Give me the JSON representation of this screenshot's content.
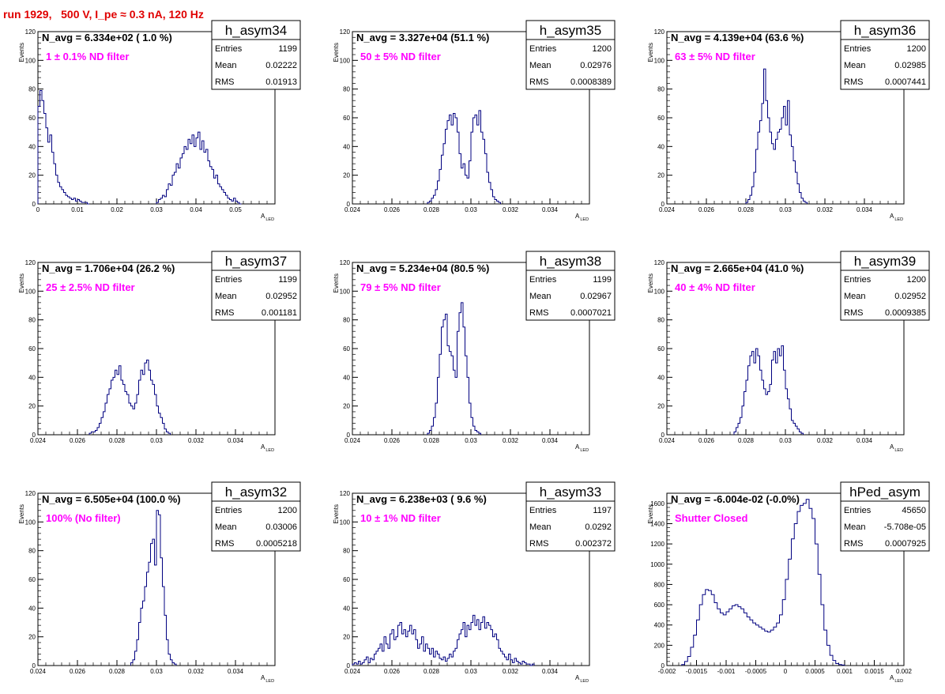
{
  "title": "run 1929,   500 V, I_pe ≈ 0.3 nA, 120 Hz",
  "colors": {
    "title": "#e00000",
    "histogram": "#000080",
    "filter_label": "#ff00ff"
  },
  "stat_labels": {
    "entries": "Entries",
    "mean": "Mean",
    "rms": "RMS"
  },
  "axis_labels": {
    "y": "Events",
    "x_main": "A",
    "x_sub": "LED"
  },
  "chart_data": [
    {
      "type": "bar",
      "name": "h_asym34",
      "n_avg": "N_avg = 6.334e+02 ( 1.0 %)",
      "filter": "1 ± 0.1% ND filter",
      "entries": "1199",
      "mean": "0.02222",
      "rms": "0.01913",
      "xlim": [
        0,
        0.06
      ],
      "ylim": [
        0,
        120
      ],
      "xticks": [
        0,
        0.01,
        0.02,
        0.03,
        0.04,
        0.05
      ],
      "xtick_labels": [
        "0",
        "0.01",
        "0.02",
        "0.03",
        "0.04",
        "0.05"
      ],
      "yticks": [
        0,
        20,
        40,
        60,
        80,
        100,
        120
      ],
      "bins": [
        {
          "x0": 0.0,
          "x1": 0.0005,
          "y": 68
        },
        {
          "x0": 0.0005,
          "x1": 0.001,
          "y": 79
        },
        {
          "x0": 0.001,
          "x1": 0.0015,
          "y": 72
        },
        {
          "x0": 0.0015,
          "x1": 0.002,
          "y": 63
        },
        {
          "x0": 0.002,
          "x1": 0.0025,
          "y": 53
        },
        {
          "x0": 0.0025,
          "x1": 0.003,
          "y": 43
        },
        {
          "x0": 0.003,
          "x1": 0.0035,
          "y": 48
        },
        {
          "x0": 0.0035,
          "x1": 0.004,
          "y": 36
        },
        {
          "x0": 0.004,
          "x1": 0.0045,
          "y": 28
        },
        {
          "x0": 0.0045,
          "x1": 0.005,
          "y": 20
        },
        {
          "x0": 0.005,
          "x1": 0.0055,
          "y": 15
        },
        {
          "x0": 0.0055,
          "x1": 0.006,
          "y": 12
        },
        {
          "x0": 0.006,
          "x1": 0.0065,
          "y": 10
        },
        {
          "x0": 0.0065,
          "x1": 0.007,
          "y": 8
        },
        {
          "x0": 0.007,
          "x1": 0.0075,
          "y": 6
        },
        {
          "x0": 0.0075,
          "x1": 0.008,
          "y": 5
        },
        {
          "x0": 0.008,
          "x1": 0.0085,
          "y": 4
        },
        {
          "x0": 0.0085,
          "x1": 0.009,
          "y": 3
        },
        {
          "x0": 0.009,
          "x1": 0.0095,
          "y": 4
        },
        {
          "x0": 0.0095,
          "x1": 0.01,
          "y": 2
        },
        {
          "x0": 0.01,
          "x1": 0.0105,
          "y": 3
        },
        {
          "x0": 0.0105,
          "x1": 0.011,
          "y": 2
        },
        {
          "x0": 0.011,
          "x1": 0.0115,
          "y": 1
        },
        {
          "x0": 0.0115,
          "x1": 0.012,
          "y": 1
        },
        {
          "x0": 0.012,
          "x1": 0.0125,
          "y": 1
        },
        {
          "x0": 0.0125,
          "x1": 0.013,
          "y": 0
        },
        {
          "x0": 0.03,
          "x1": 0.0305,
          "y": 1
        },
        {
          "x0": 0.0305,
          "x1": 0.031,
          "y": 3
        },
        {
          "x0": 0.031,
          "x1": 0.0315,
          "y": 4
        },
        {
          "x0": 0.0315,
          "x1": 0.032,
          "y": 6
        },
        {
          "x0": 0.032,
          "x1": 0.0325,
          "y": 5
        },
        {
          "x0": 0.0325,
          "x1": 0.033,
          "y": 10
        },
        {
          "x0": 0.033,
          "x1": 0.0335,
          "y": 14
        },
        {
          "x0": 0.0335,
          "x1": 0.034,
          "y": 13
        },
        {
          "x0": 0.034,
          "x1": 0.0345,
          "y": 20
        },
        {
          "x0": 0.0345,
          "x1": 0.035,
          "y": 22
        },
        {
          "x0": 0.035,
          "x1": 0.0355,
          "y": 28
        },
        {
          "x0": 0.0355,
          "x1": 0.036,
          "y": 25
        },
        {
          "x0": 0.036,
          "x1": 0.0365,
          "y": 32
        },
        {
          "x0": 0.0365,
          "x1": 0.037,
          "y": 35
        },
        {
          "x0": 0.037,
          "x1": 0.0375,
          "y": 40
        },
        {
          "x0": 0.0375,
          "x1": 0.038,
          "y": 38
        },
        {
          "x0": 0.038,
          "x1": 0.0385,
          "y": 45
        },
        {
          "x0": 0.0385,
          "x1": 0.039,
          "y": 42
        },
        {
          "x0": 0.039,
          "x1": 0.0395,
          "y": 48
        },
        {
          "x0": 0.0395,
          "x1": 0.04,
          "y": 40
        },
        {
          "x0": 0.04,
          "x1": 0.0405,
          "y": 46
        },
        {
          "x0": 0.0405,
          "x1": 0.041,
          "y": 50
        },
        {
          "x0": 0.041,
          "x1": 0.0415,
          "y": 38
        },
        {
          "x0": 0.0415,
          "x1": 0.042,
          "y": 44
        },
        {
          "x0": 0.042,
          "x1": 0.0425,
          "y": 36
        },
        {
          "x0": 0.0425,
          "x1": 0.043,
          "y": 38
        },
        {
          "x0": 0.043,
          "x1": 0.0435,
          "y": 30
        },
        {
          "x0": 0.0435,
          "x1": 0.044,
          "y": 26
        },
        {
          "x0": 0.044,
          "x1": 0.0445,
          "y": 24
        },
        {
          "x0": 0.0445,
          "x1": 0.045,
          "y": 18
        },
        {
          "x0": 0.045,
          "x1": 0.0455,
          "y": 20
        },
        {
          "x0": 0.0455,
          "x1": 0.046,
          "y": 14
        },
        {
          "x0": 0.046,
          "x1": 0.0465,
          "y": 12
        },
        {
          "x0": 0.0465,
          "x1": 0.047,
          "y": 10
        },
        {
          "x0": 0.047,
          "x1": 0.0475,
          "y": 8
        },
        {
          "x0": 0.0475,
          "x1": 0.048,
          "y": 6
        },
        {
          "x0": 0.048,
          "x1": 0.0485,
          "y": 4
        },
        {
          "x0": 0.0485,
          "x1": 0.049,
          "y": 3
        },
        {
          "x0": 0.049,
          "x1": 0.0495,
          "y": 2
        },
        {
          "x0": 0.0495,
          "x1": 0.05,
          "y": 4
        },
        {
          "x0": 0.05,
          "x1": 0.0505,
          "y": 2
        },
        {
          "x0": 0.0505,
          "x1": 0.051,
          "y": 1
        },
        {
          "x0": 0.051,
          "x1": 0.0515,
          "y": 0
        }
      ]
    },
    {
      "type": "bar",
      "name": "h_asym35",
      "n_avg": "N_avg = 3.327e+04 (51.1 %)",
      "filter": "50 ± 5% ND filter",
      "entries": "1200",
      "mean": "0.02976",
      "rms": "0.0008389",
      "xlim": [
        0.024,
        0.036
      ],
      "ylim": [
        0,
        120
      ],
      "xticks": [
        0.024,
        0.026,
        0.028,
        0.03,
        0.032,
        0.034
      ],
      "xtick_labels": [
        "0.024",
        "0.026",
        "0.028",
        "0.03",
        "0.032",
        "0.034"
      ],
      "yticks": [
        0,
        20,
        40,
        60,
        80,
        100,
        120
      ],
      "x0": 0.0278,
      "dx": 0.0001,
      "counts": [
        1,
        2,
        4,
        6,
        10,
        16,
        24,
        34,
        42,
        52,
        58,
        62,
        55,
        63,
        60,
        50,
        35,
        25,
        28,
        20,
        18,
        30,
        50,
        60,
        62,
        55,
        65,
        50,
        45,
        35,
        22,
        15,
        10,
        5,
        3,
        2,
        1
      ]
    },
    {
      "type": "bar",
      "name": "h_asym36",
      "n_avg": "N_avg = 4.139e+04 (63.6 %)",
      "filter": "63 ± 5% ND filter",
      "entries": "1200",
      "mean": "0.02985",
      "rms": "0.0007441",
      "xlim": [
        0.024,
        0.036
      ],
      "ylim": [
        0,
        120
      ],
      "xticks": [
        0.024,
        0.026,
        0.028,
        0.03,
        0.032,
        0.034
      ],
      "xtick_labels": [
        "0.024",
        "0.026",
        "0.028",
        "0.03",
        "0.032",
        "0.034"
      ],
      "yticks": [
        0,
        20,
        40,
        60,
        80,
        100,
        120
      ],
      "x0": 0.028,
      "dx": 0.0001,
      "counts": [
        1,
        3,
        6,
        12,
        22,
        38,
        50,
        58,
        70,
        94,
        72,
        60,
        50,
        42,
        38,
        45,
        50,
        52,
        60,
        68,
        55,
        72,
        48,
        40,
        30,
        22,
        14,
        8,
        4,
        2,
        1
      ]
    },
    {
      "type": "bar",
      "name": "h_asym37",
      "n_avg": "N_avg = 1.706e+04 (26.2 %)",
      "filter": "25 ± 2.5% ND filter",
      "entries": "1199",
      "mean": "0.02952",
      "rms": "0.001181",
      "xlim": [
        0.024,
        0.036
      ],
      "ylim": [
        0,
        120
      ],
      "xticks": [
        0.024,
        0.026,
        0.028,
        0.03,
        0.032,
        0.034
      ],
      "xtick_labels": [
        "0.024",
        "0.026",
        "0.028",
        "0.03",
        "0.032",
        "0.034"
      ],
      "yticks": [
        0,
        20,
        40,
        60,
        80,
        100,
        120
      ],
      "x0": 0.0266,
      "dx": 0.0001,
      "counts": [
        1,
        2,
        2,
        3,
        5,
        8,
        12,
        16,
        22,
        28,
        32,
        38,
        40,
        45,
        42,
        48,
        38,
        35,
        30,
        28,
        22,
        20,
        18,
        22,
        28,
        38,
        45,
        42,
        50,
        52,
        45,
        38,
        35,
        28,
        20,
        15,
        12,
        8,
        4,
        2,
        1
      ]
    },
    {
      "type": "bar",
      "name": "h_asym38",
      "n_avg": "N_avg = 5.234e+04 (80.5 %)",
      "filter": "79 ± 5% ND filter",
      "entries": "1199",
      "mean": "0.02967",
      "rms": "0.0007021",
      "xlim": [
        0.024,
        0.036
      ],
      "ylim": [
        0,
        120
      ],
      "xticks": [
        0.024,
        0.026,
        0.028,
        0.03,
        0.032,
        0.034
      ],
      "xtick_labels": [
        "0.024",
        "0.026",
        "0.028",
        "0.03",
        "0.032",
        "0.034"
      ],
      "yticks": [
        0,
        20,
        40,
        60,
        80,
        100,
        120
      ],
      "x0": 0.0278,
      "dx": 0.0001,
      "counts": [
        1,
        3,
        6,
        12,
        22,
        40,
        56,
        75,
        80,
        84,
        62,
        58,
        55,
        45,
        40,
        72,
        85,
        92,
        75,
        55,
        40,
        22,
        12,
        6,
        3,
        2,
        1
      ]
    },
    {
      "type": "bar",
      "name": "h_asym39",
      "n_avg": "N_avg = 2.665e+04 (41.0 %)",
      "filter": "40 ± 4% ND filter",
      "entries": "1200",
      "mean": "0.02952",
      "rms": "0.0009385",
      "xlim": [
        0.024,
        0.036
      ],
      "ylim": [
        0,
        120
      ],
      "xticks": [
        0.024,
        0.026,
        0.028,
        0.03,
        0.032,
        0.034
      ],
      "xtick_labels": [
        "0.024",
        "0.026",
        "0.028",
        "0.03",
        "0.032",
        "0.034"
      ],
      "yticks": [
        0,
        20,
        40,
        60,
        80,
        100,
        120
      ],
      "x0": 0.0274,
      "dx": 0.0001,
      "counts": [
        2,
        5,
        8,
        12,
        20,
        30,
        38,
        48,
        55,
        58,
        50,
        60,
        55,
        45,
        38,
        32,
        28,
        30,
        35,
        52,
        58,
        50,
        60,
        55,
        62,
        45,
        32,
        25,
        18,
        10,
        8,
        6,
        4,
        2,
        1
      ]
    },
    {
      "type": "bar",
      "name": "h_asym32",
      "n_avg": "N_avg = 6.505e+04 (100.0 %)",
      "filter": "100% (No filter)",
      "entries": "1200",
      "mean": "0.03006",
      "rms": "0.0005218",
      "xlim": [
        0.024,
        0.036
      ],
      "ylim": [
        0,
        120
      ],
      "xticks": [
        0.024,
        0.026,
        0.028,
        0.03,
        0.032,
        0.034
      ],
      "xtick_labels": [
        "0.024",
        "0.026",
        "0.028",
        "0.03",
        "0.032",
        "0.034"
      ],
      "yticks": [
        0,
        20,
        40,
        60,
        80,
        100,
        120
      ],
      "x0": 0.0287,
      "dx": 0.0001,
      "counts": [
        2,
        4,
        10,
        18,
        30,
        40,
        45,
        55,
        65,
        72,
        85,
        88,
        70,
        108,
        105,
        75,
        55,
        35,
        18,
        8,
        4,
        2,
        1
      ]
    },
    {
      "type": "bar",
      "name": "h_asym33",
      "n_avg": "N_avg = 6.238e+03 ( 9.6 %)",
      "filter": "10 ± 1% ND filter",
      "entries": "1197",
      "mean": "0.0292",
      "rms": "0.002372",
      "xlim": [
        0.024,
        0.036
      ],
      "ylim": [
        0,
        120
      ],
      "xticks": [
        0.024,
        0.026,
        0.028,
        0.03,
        0.032,
        0.034
      ],
      "xtick_labels": [
        "0.024",
        "0.026",
        "0.028",
        "0.03",
        "0.032",
        "0.034"
      ],
      "yticks": [
        0,
        20,
        40,
        60,
        80,
        100,
        120
      ],
      "x0": 0.024,
      "dx": 0.0001,
      "counts": [
        1,
        2,
        1,
        3,
        1,
        2,
        4,
        6,
        2,
        5,
        4,
        8,
        10,
        12,
        15,
        10,
        20,
        15,
        12,
        22,
        25,
        18,
        20,
        28,
        30,
        22,
        25,
        20,
        24,
        28,
        22,
        25,
        18,
        12,
        15,
        20,
        10,
        15,
        12,
        8,
        12,
        6,
        10,
        8,
        5,
        4,
        6,
        3,
        5,
        8,
        6,
        10,
        12,
        18,
        22,
        25,
        30,
        20,
        28,
        25,
        30,
        35,
        28,
        32,
        25,
        30,
        34,
        26,
        30,
        28,
        25,
        20,
        22,
        18,
        12,
        10,
        8,
        6,
        4,
        8,
        4,
        2,
        5,
        3,
        2,
        1,
        3,
        2,
        1,
        1,
        0,
        1
      ]
    },
    {
      "type": "bar",
      "name": "hPed_asym",
      "n_avg": "N_avg = -6.004e-02 (-0.0%)",
      "filter": "Shutter Closed",
      "entries": "45650",
      "mean": "-5.708e-05",
      "rms": "0.0007925",
      "xlim": [
        -0.002,
        0.002
      ],
      "ylim": [
        0,
        1700
      ],
      "xticks": [
        -0.002,
        -0.0015,
        -0.001,
        -0.0005,
        0,
        0.0005,
        0.001,
        0.0015,
        0.002
      ],
      "xtick_labels": [
        "-0.002",
        "-0.0015",
        "-0.001",
        "-0.0005",
        "0",
        "0.0005",
        "0.001",
        "0.0015",
        "0.002"
      ],
      "yticks": [
        0,
        200,
        400,
        600,
        800,
        1000,
        1200,
        1400,
        1600
      ],
      "x0": -0.00175,
      "dx": 5e-05,
      "counts": [
        10,
        40,
        90,
        180,
        300,
        450,
        600,
        700,
        750,
        740,
        700,
        620,
        560,
        520,
        500,
        530,
        560,
        590,
        600,
        580,
        560,
        520,
        480,
        450,
        420,
        400,
        380,
        360,
        340,
        330,
        350,
        380,
        420,
        500,
        650,
        850,
        1050,
        1250,
        1400,
        1520,
        1580,
        1600,
        1640,
        1550,
        1450,
        1200,
        900,
        600,
        350,
        200,
        100,
        50,
        20,
        10,
        5
      ]
    }
  ]
}
